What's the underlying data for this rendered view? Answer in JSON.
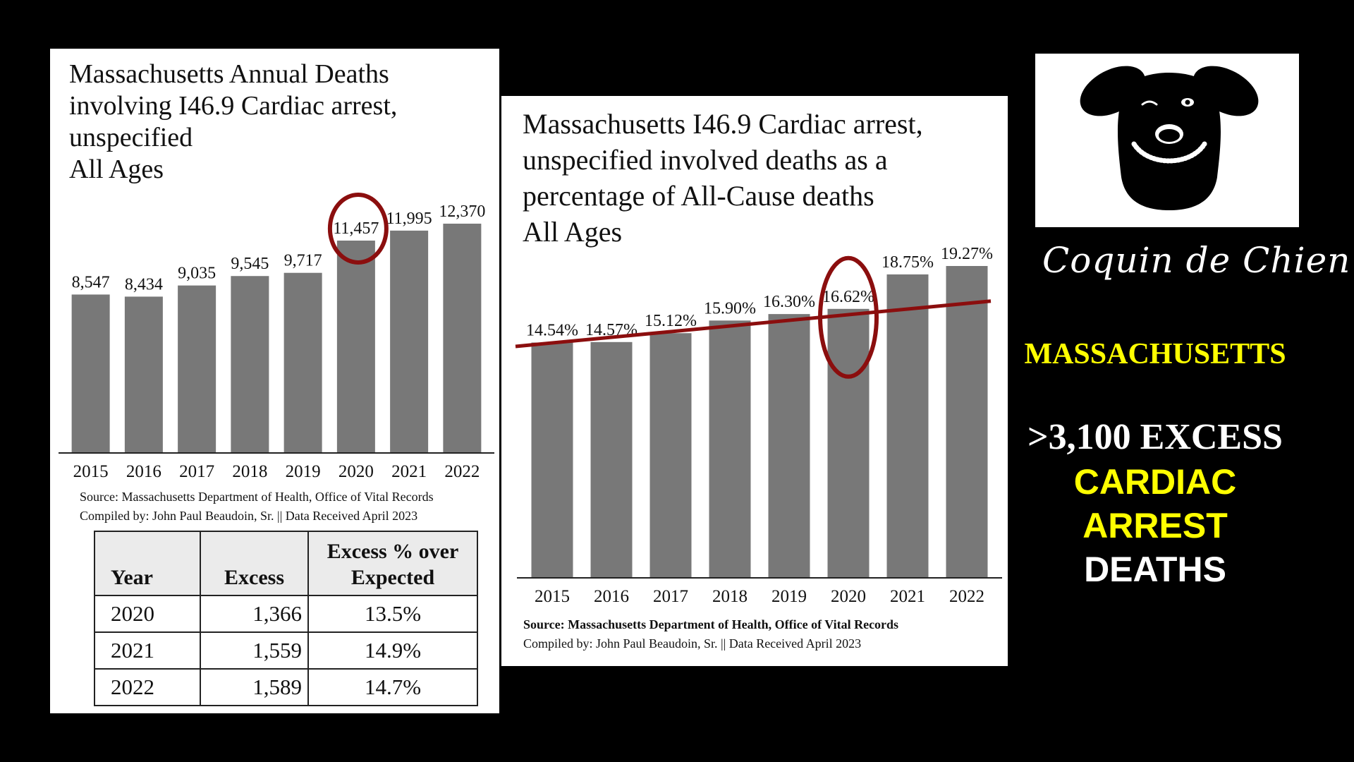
{
  "chart_data": [
    {
      "type": "bar",
      "title_lines": [
        "Massachusetts Annual Deaths",
        "involving I46.9 Cardiac arrest,",
        "unspecified",
        "All Ages"
      ],
      "categories": [
        "2015",
        "2016",
        "2017",
        "2018",
        "2019",
        "2020",
        "2021",
        "2022"
      ],
      "values": [
        8547,
        8434,
        9035,
        9545,
        9717,
        11457,
        11995,
        12370
      ],
      "value_labels": [
        "8,547",
        "8,434",
        "9,035",
        "9,545",
        "9,717",
        "11,457",
        "11,995",
        "12,370"
      ],
      "ylim": [
        0,
        12370
      ],
      "grid": false,
      "highlight_category": "2020",
      "source_lines": [
        "Source:  Massachusetts Department of Health, Office of Vital Records",
        "Compiled by:  John Paul Beaudoin, Sr. || Data Received April 2023"
      ]
    },
    {
      "type": "bar",
      "title_lines": [
        "Massachusetts I46.9 Cardiac arrest,",
        "unspecified involved deaths as a",
        "percentage of All-Cause deaths",
        "All Ages"
      ],
      "categories": [
        "2015",
        "2016",
        "2017",
        "2018",
        "2019",
        "2020",
        "2021",
        "2022"
      ],
      "values": [
        14.54,
        14.57,
        15.12,
        15.9,
        16.3,
        16.62,
        18.75,
        19.27
      ],
      "value_labels": [
        "14.54%",
        "14.57%",
        "15.12%",
        "15.90%",
        "16.30%",
        "16.62%",
        "18.75%",
        "19.27%"
      ],
      "ylim": [
        0,
        19.27
      ],
      "grid": false,
      "trend_line": {
        "start": 14.3,
        "end": 17.1
      },
      "highlight_category": "2020",
      "source_lines": [
        "Source:  Massachusetts Department of Health, Office of Vital Records",
        "Compiled by:  John Paul Beaudoin, Sr. || Data Received April 2023"
      ]
    }
  ],
  "excess_table": {
    "headers": [
      "Year",
      "Excess",
      "Excess % over",
      "Expected"
    ],
    "rows": [
      {
        "year": "2020",
        "excess": "1,366",
        "pct": "13.5%"
      },
      {
        "year": "2021",
        "excess": "1,559",
        "pct": "14.9%"
      },
      {
        "year": "2022",
        "excess": "1,589",
        "pct": "14.7%"
      }
    ]
  },
  "brand": {
    "script_name": "Coquin de Chien",
    "logo_icon": "dog-face-icon"
  },
  "sidebar": {
    "state": "MASSACHUSETTS",
    "message_lines": [
      ">3,100 EXCESS",
      "CARDIAC",
      "ARREST",
      "DEATHS"
    ]
  },
  "colors": {
    "bars": "#787878",
    "highlight": "#8b0e0e",
    "accent_yellow": "#ffff00",
    "background": "#000000"
  }
}
